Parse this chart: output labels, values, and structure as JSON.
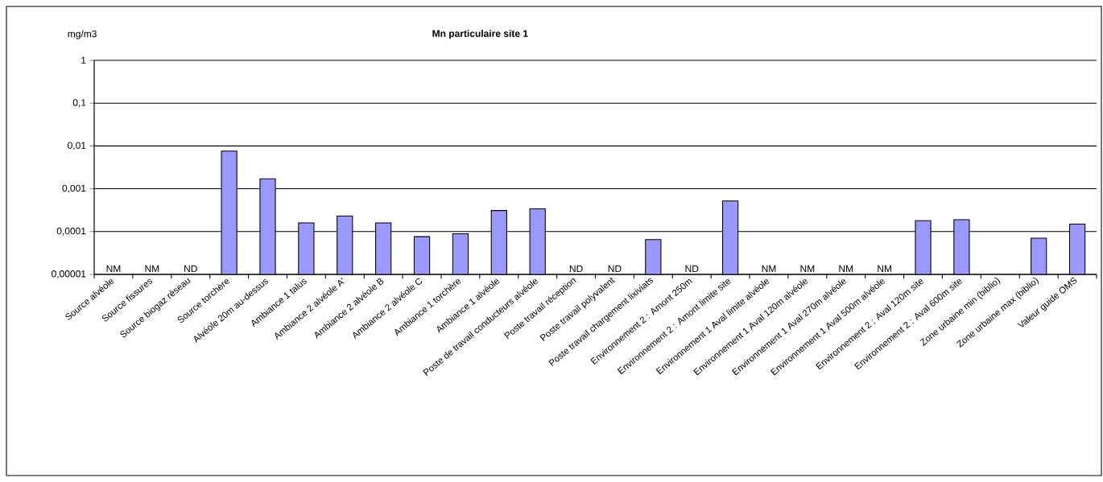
{
  "chart_data": {
    "type": "bar",
    "title": "Mn particulaire site 1",
    "ylabel": "mg/m3",
    "categories": [
      "Source alvéole",
      "Source fissures",
      "Source biogaz réseau",
      "Source torchère",
      "Alvéole 20m au-dessus",
      "Ambiance 1 talus",
      "Ambiance 2 alvéole A'",
      "Ambiance 2 alvéole B",
      "Ambiance 2 alvéole C",
      "Ambiance 1 torchère",
      "Ambiance 1 alvéole",
      "Poste de travail conducteurs alvéole",
      "Poste travail réception",
      "Poste travail polyvalent",
      "Poste travail chargement lixiviats",
      "Environnement 2 : Amont 250m",
      "Environnement 2 : Amont limite site",
      "Environnement 1 Aval limite alvéole",
      "Environnement 1 Aval 120m alvéole",
      "Environnement 1 Aval 270m alvéole",
      "Environnement 1 Aval 500m alvéole",
      "Environnement 2 : Aval 120m site",
      "Environnement 2 : Aval 600m site",
      "Zone urbaine min (biblio)",
      "Zone urbaine max (biblio)",
      "Valeur guide OMS"
    ],
    "values": [
      null,
      null,
      null,
      0.0076,
      0.0017,
      0.00016,
      0.00023,
      0.00016,
      7.6e-05,
      8.9e-05,
      0.00031,
      0.00034,
      null,
      null,
      6.5e-05,
      null,
      0.00052,
      null,
      null,
      null,
      null,
      0.00018,
      0.00019,
      null,
      7e-05,
      0.00015
    ],
    "value_labels": [
      "NM",
      "NM",
      "ND",
      null,
      null,
      null,
      null,
      null,
      null,
      null,
      null,
      null,
      "ND",
      "ND",
      null,
      "ND",
      null,
      "NM",
      "NM",
      "NM",
      "NM",
      null,
      null,
      null,
      null,
      null
    ],
    "color": "#9999ff",
    "log": true,
    "grid": "y",
    "ylim": [
      1e-05,
      1
    ],
    "yticks": [
      {
        "value": 1e-05,
        "label": "0,00001"
      },
      {
        "value": 0.0001,
        "label": "0,0001"
      },
      {
        "value": 0.001,
        "label": "0,001"
      },
      {
        "value": 0.01,
        "label": "0,01"
      },
      {
        "value": 0.1,
        "label": "0,1"
      },
      1
    ]
  }
}
